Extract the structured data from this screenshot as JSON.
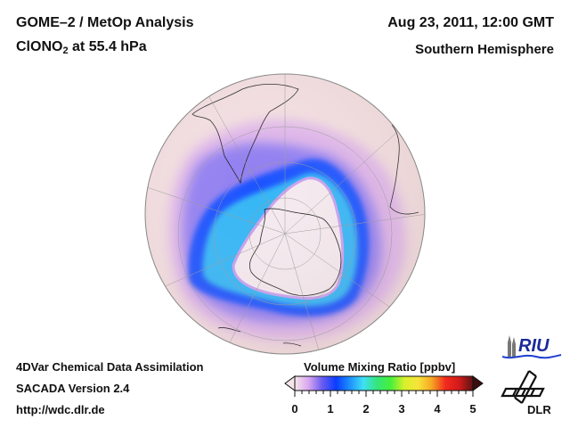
{
  "header": {
    "title_line1": "GOME–2 / MetOp Analysis",
    "species_main": "ClONO",
    "species_sub": "2",
    "species_rest": " at 55.4 hPa",
    "date": "Aug 23, 2011, 12:00 GMT",
    "hemisphere": "Southern Hemisphere"
  },
  "footer": {
    "line1": "4DVar Chemical Data Assimilation",
    "line2": "SACADA Version 2.4",
    "line3": "http://wdc.dlr.de"
  },
  "colorbar": {
    "title": "Volume Mixing Ratio [ppbv]",
    "ticks": [
      "0",
      "1",
      "2",
      "3",
      "4",
      "5"
    ],
    "min": 0,
    "max": 5,
    "colors": [
      "#f6e6ea",
      "#d9a6f0",
      "#6a5cf0",
      "#0a3cff",
      "#1e90ff",
      "#3ee0f5",
      "#36e57a",
      "#46f03a",
      "#d8f02a",
      "#f7e43a",
      "#f5a623",
      "#f22a1e",
      "#d11a1a",
      "#5a1414"
    ]
  },
  "logos": {
    "riu": "RIU",
    "dlr": "DLR"
  },
  "map": {
    "land_color": "#f2e7e8",
    "ocean_base": "#f3dfe1",
    "high_color": "#6a5cf0",
    "core_color": "#1e90ff"
  }
}
